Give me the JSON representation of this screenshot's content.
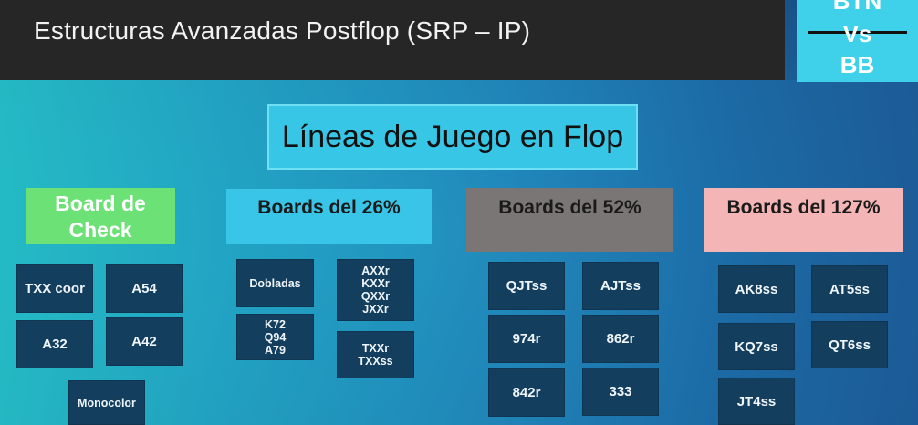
{
  "header": {
    "title": "Estructuras Avanzadas Postflop (SRP – IP)"
  },
  "badge": {
    "line1": "BTN",
    "line2": "Vs",
    "line3": "BB"
  },
  "main_title": "Líneas de Juego en Flop",
  "categories": {
    "check": {
      "label_line1": "Board de",
      "label_line2": "Check"
    },
    "p26": {
      "label": "Boards del 26%"
    },
    "p52": {
      "label": "Boards del 52%"
    },
    "p127": {
      "label": "Boards del 127%"
    }
  },
  "check_boards": {
    "txx": "TXX coor",
    "a54": "A54",
    "a32": "A32",
    "a42": "A42",
    "mono": "Monocolor"
  },
  "p26_boards": {
    "dobladas": "Dobladas",
    "k72": [
      "K72",
      "Q94",
      "A79"
    ],
    "axx": [
      "AXXr",
      "KXXr",
      "QXXr",
      "JXXr"
    ],
    "txx": [
      "TXXr",
      "TXXss"
    ]
  },
  "p52_boards": {
    "qjt": "QJTss",
    "ajt": "AJTss",
    "n974": "974r",
    "n862": "862r",
    "n842": "842r",
    "n333": "333"
  },
  "p127_boards": {
    "ak8": "AK8ss",
    "at5": "AT5ss",
    "kq7": "KQ7ss",
    "qt6": "QT6ss",
    "jt4": "JT4ss"
  }
}
